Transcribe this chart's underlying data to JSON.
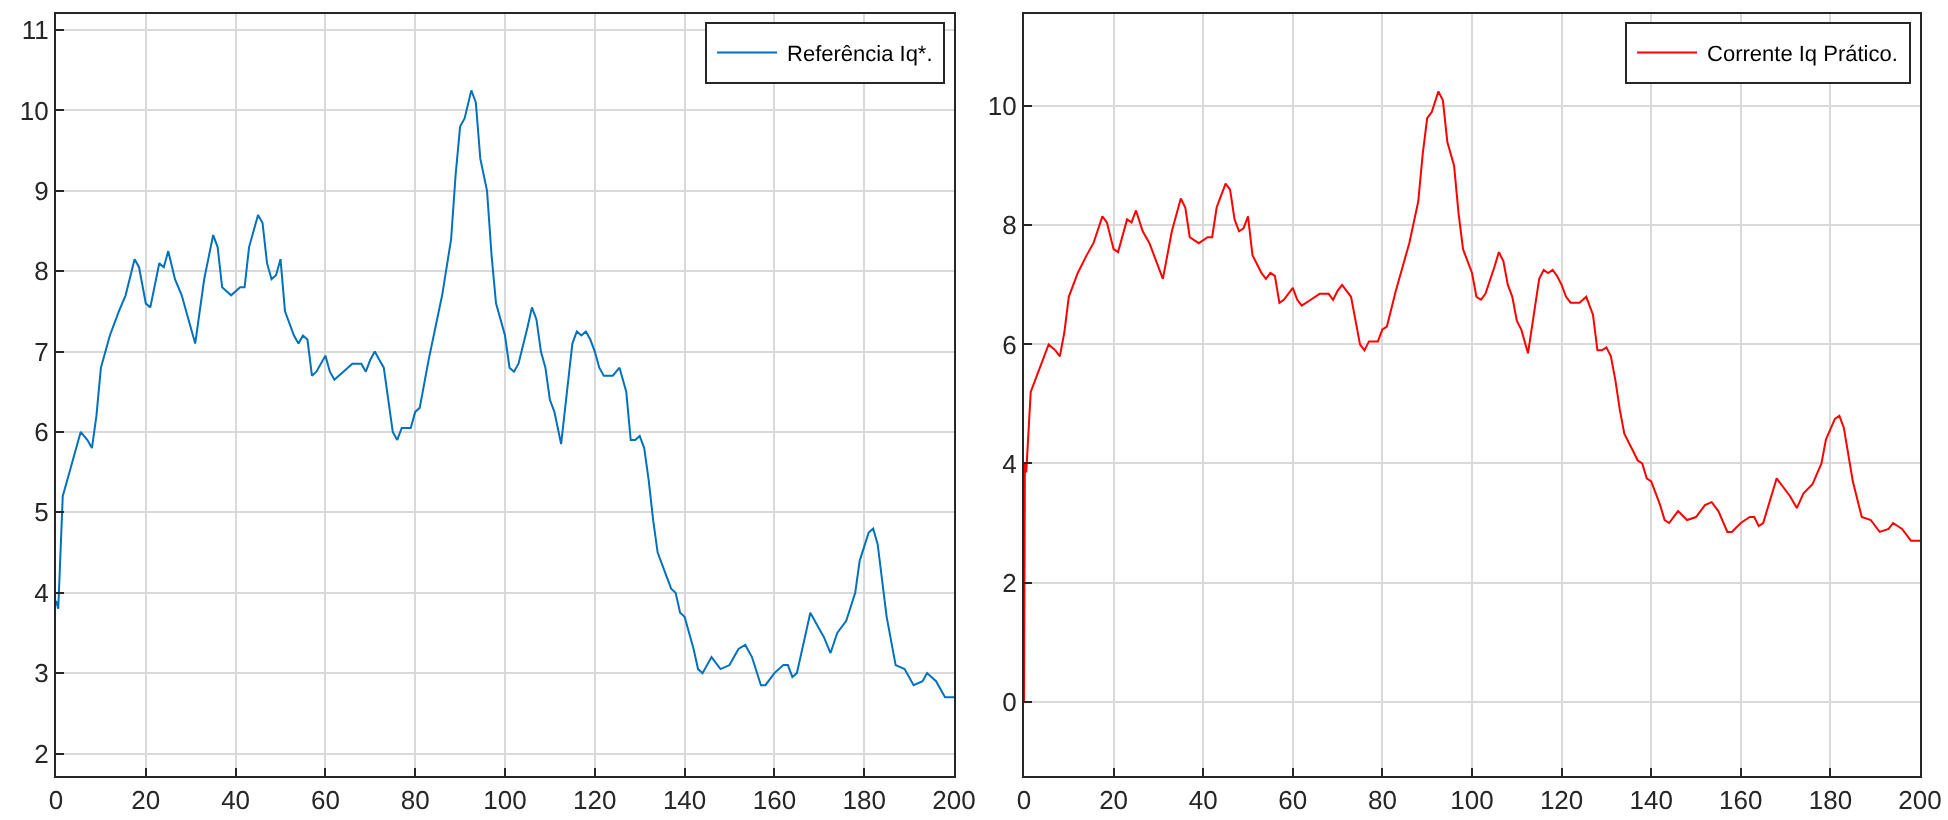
{
  "chart_data": [
    {
      "type": "line",
      "xlim": [
        0,
        200
      ],
      "ylim": [
        1.72,
        11.2
      ],
      "xticks": [
        0,
        20,
        40,
        60,
        80,
        100,
        120,
        140,
        160,
        180,
        200
      ],
      "yticks": [
        2,
        3,
        4,
        5,
        6,
        7,
        8,
        9,
        10,
        11
      ],
      "grid": true,
      "legend": "top right",
      "line_style": "solid",
      "series": [
        {
          "name": "Referência Iq*.",
          "color": "#0072bd",
          "x": [
            0,
            0.5,
            1.5,
            3,
            4.5,
            5.5,
            7,
            8,
            9,
            10,
            12,
            14,
            15.5,
            17.5,
            18.5,
            20,
            21,
            23,
            24,
            25,
            26.5,
            28,
            31,
            33,
            35,
            36,
            37,
            39,
            41,
            42,
            43,
            45,
            46,
            47,
            48,
            49,
            50,
            51,
            53,
            54,
            55,
            56,
            57,
            58,
            60,
            61,
            62,
            64,
            66,
            68,
            69,
            70,
            71,
            72,
            73,
            75,
            76,
            77,
            79,
            80,
            81,
            83,
            86,
            88,
            89,
            90,
            91,
            92.5,
            93.5,
            94.5,
            96,
            97,
            98,
            100,
            101,
            102,
            103,
            105,
            106,
            107,
            108,
            109,
            110,
            111,
            112.5,
            114,
            115,
            116,
            117,
            118,
            119,
            120,
            121,
            122,
            124,
            125.5,
            127,
            128,
            129,
            130,
            131,
            132,
            133,
            134,
            136,
            137,
            138,
            139,
            140,
            142,
            143,
            144,
            146,
            148,
            150,
            152,
            153.5,
            155,
            157,
            158,
            160,
            162,
            163,
            164,
            165,
            167,
            168,
            170,
            171,
            172.5,
            174,
            176,
            178,
            179,
            181,
            182,
            183,
            185,
            187,
            189,
            191,
            193,
            194,
            196,
            198,
            200
          ],
          "values": [
            3.9,
            3.8,
            5.2,
            5.5,
            5.8,
            6.0,
            5.9,
            5.8,
            6.2,
            6.8,
            7.2,
            7.5,
            7.7,
            8.15,
            8.05,
            7.6,
            7.55,
            8.1,
            8.05,
            8.25,
            7.9,
            7.7,
            7.1,
            7.9,
            8.45,
            8.3,
            7.8,
            7.7,
            7.8,
            7.8,
            8.3,
            8.7,
            8.6,
            8.1,
            7.9,
            7.95,
            8.15,
            7.5,
            7.2,
            7.1,
            7.2,
            7.15,
            6.7,
            6.75,
            6.95,
            6.75,
            6.65,
            6.75,
            6.85,
            6.85,
            6.75,
            6.9,
            7.0,
            6.9,
            6.8,
            6.0,
            5.9,
            6.05,
            6.05,
            6.25,
            6.3,
            6.9,
            7.7,
            8.4,
            9.2,
            9.8,
            9.9,
            10.25,
            10.1,
            9.4,
            9.0,
            8.2,
            7.6,
            7.2,
            6.8,
            6.75,
            6.85,
            7.3,
            7.55,
            7.4,
            7.0,
            6.8,
            6.4,
            6.25,
            5.85,
            6.6,
            7.1,
            7.25,
            7.2,
            7.25,
            7.15,
            7.0,
            6.8,
            6.7,
            6.7,
            6.8,
            6.5,
            5.9,
            5.9,
            5.95,
            5.8,
            5.4,
            4.9,
            4.5,
            4.2,
            4.05,
            4.0,
            3.75,
            3.7,
            3.3,
            3.05,
            3.0,
            3.2,
            3.05,
            3.1,
            3.3,
            3.35,
            3.2,
            2.85,
            2.85,
            3.0,
            3.1,
            3.1,
            2.95,
            3.0,
            3.5,
            3.75,
            3.55,
            3.45,
            3.25,
            3.5,
            3.65,
            4.0,
            4.4,
            4.75,
            4.8,
            4.6,
            3.7,
            3.1,
            3.05,
            2.85,
            2.9,
            3.0,
            2.9,
            2.7,
            2.7
          ]
        }
      ]
    },
    {
      "type": "line",
      "xlim": [
        0,
        200
      ],
      "ylim": [
        -1.25,
        11.55
      ],
      "xticks": [
        0,
        20,
        40,
        60,
        80,
        100,
        120,
        140,
        160,
        180,
        200
      ],
      "yticks": [
        0,
        2,
        4,
        6,
        8,
        10
      ],
      "grid": true,
      "legend": "top right",
      "line_style": "solid",
      "series": [
        {
          "name": "Corrente Iq Prático.",
          "color": "#ff0000",
          "x": [
            0,
            0.2,
            0.5,
            1.5,
            3,
            4.5,
            5.5,
            7,
            8,
            9,
            10,
            12,
            14,
            15.5,
            17.5,
            18.5,
            20,
            21,
            23,
            24,
            25,
            26.5,
            28,
            31,
            33,
            35,
            36,
            37,
            39,
            41,
            42,
            43,
            45,
            46,
            47,
            48,
            49,
            50,
            51,
            53,
            54,
            55,
            56,
            57,
            58,
            60,
            61,
            62,
            64,
            66,
            68,
            69,
            70,
            71,
            72,
            73,
            75,
            76,
            77,
            79,
            80,
            81,
            83,
            86,
            88,
            89,
            90,
            91,
            92.5,
            93.5,
            94.5,
            96,
            97,
            98,
            100,
            101,
            102,
            103,
            105,
            106,
            107,
            108,
            109,
            110,
            111,
            112.5,
            114,
            115,
            116,
            117,
            118,
            119,
            120,
            121,
            122,
            124,
            125.5,
            127,
            128,
            129,
            130,
            131,
            132,
            133,
            134,
            136,
            137,
            138,
            139,
            140,
            142,
            143,
            144,
            146,
            148,
            150,
            152,
            153.5,
            155,
            157,
            158,
            160,
            162,
            163,
            164,
            165,
            167,
            168,
            170,
            171,
            172.5,
            174,
            176,
            178,
            179,
            181,
            182,
            183,
            185,
            187,
            189,
            191,
            193,
            194,
            196,
            198,
            200
          ],
          "values": [
            0,
            4.0,
            3.85,
            5.2,
            5.5,
            5.8,
            6.0,
            5.9,
            5.8,
            6.2,
            6.8,
            7.2,
            7.5,
            7.7,
            8.15,
            8.05,
            7.6,
            7.55,
            8.1,
            8.05,
            8.25,
            7.9,
            7.7,
            7.1,
            7.9,
            8.45,
            8.3,
            7.8,
            7.7,
            7.8,
            7.8,
            8.3,
            8.7,
            8.6,
            8.1,
            7.9,
            7.95,
            8.15,
            7.5,
            7.2,
            7.1,
            7.2,
            7.15,
            6.7,
            6.75,
            6.95,
            6.75,
            6.65,
            6.75,
            6.85,
            6.85,
            6.75,
            6.9,
            7.0,
            6.9,
            6.8,
            6.0,
            5.9,
            6.05,
            6.05,
            6.25,
            6.3,
            6.9,
            7.7,
            8.4,
            9.2,
            9.8,
            9.9,
            10.25,
            10.1,
            9.4,
            9.0,
            8.2,
            7.6,
            7.2,
            6.8,
            6.75,
            6.85,
            7.3,
            7.55,
            7.4,
            7.0,
            6.8,
            6.4,
            6.25,
            5.85,
            6.6,
            7.1,
            7.25,
            7.2,
            7.25,
            7.15,
            7.0,
            6.8,
            6.7,
            6.7,
            6.8,
            6.5,
            5.9,
            5.9,
            5.95,
            5.8,
            5.4,
            4.9,
            4.5,
            4.2,
            4.05,
            4.0,
            3.75,
            3.7,
            3.3,
            3.05,
            3.0,
            3.2,
            3.05,
            3.1,
            3.3,
            3.35,
            3.2,
            2.85,
            2.85,
            3.0,
            3.1,
            3.1,
            2.95,
            3.0,
            3.5,
            3.75,
            3.55,
            3.45,
            3.25,
            3.5,
            3.65,
            4.0,
            4.4,
            4.75,
            4.8,
            4.6,
            3.7,
            3.1,
            3.05,
            2.85,
            2.9,
            3.0,
            2.9,
            2.7,
            2.7
          ]
        }
      ]
    }
  ]
}
